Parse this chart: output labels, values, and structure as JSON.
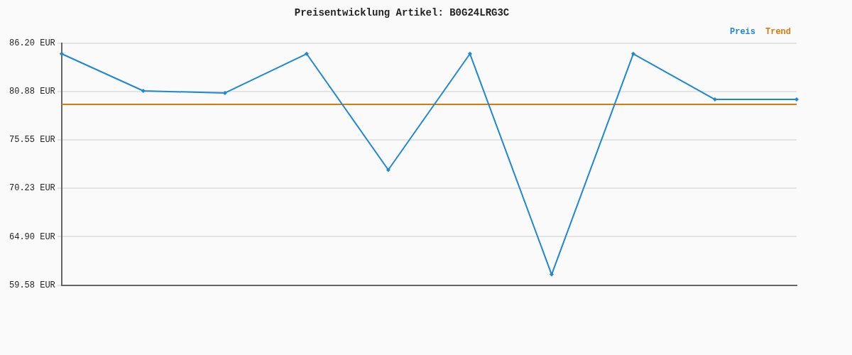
{
  "chart_data": {
    "type": "line",
    "title": "Preisentwicklung Artikel: B0G24LRG3C",
    "categories": [
      null,
      null,
      null,
      null,
      null,
      null,
      null,
      null,
      null,
      null
    ],
    "series": [
      {
        "name": "Preis",
        "color": "#1e88d4",
        "marker": "diamond",
        "values": [
          85.03,
          80.95,
          80.72,
          85.03,
          72.26,
          85.03,
          60.75,
          85.03,
          80.01,
          80.01
        ]
      },
      {
        "name": "Trend",
        "color": "#d87a0c",
        "type": "line",
        "marker": "none",
        "values": [
          79.47,
          79.47,
          79.47,
          79.47,
          79.47,
          79.47,
          79.47,
          79.47,
          79.47,
          79.47
        ]
      }
    ],
    "ylim": [
      59.58,
      86.2
    ],
    "yticks": [
      {
        "value": 59.58,
        "label": "59.58 EUR"
      },
      {
        "value": 64.9,
        "label": "64.90 EUR"
      },
      {
        "value": 70.23,
        "label": "70.23 EUR"
      },
      {
        "value": 75.55,
        "label": "75.55 EUR"
      },
      {
        "value": 80.88,
        "label": "80.88 EUR"
      },
      {
        "value": 86.2,
        "label": "86.20 EUR"
      }
    ],
    "grid": "y",
    "legend": "top right",
    "line_style": "solid"
  }
}
